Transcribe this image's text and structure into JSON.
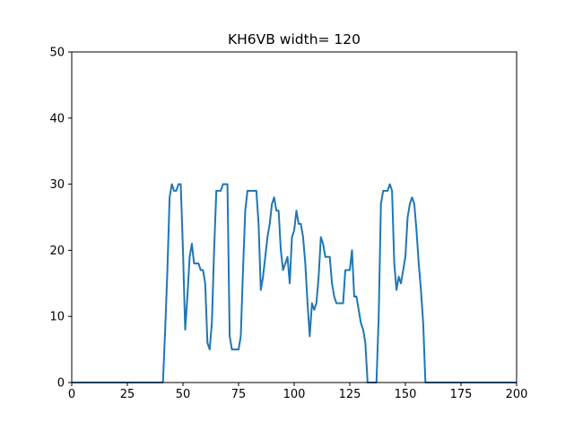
{
  "chart_data": {
    "type": "line",
    "title": "KH6VB width= 120",
    "xlabel": "",
    "ylabel": "",
    "xlim": [
      0,
      200
    ],
    "ylim": [
      0,
      50
    ],
    "grid": false,
    "line_color": "#1f77b4",
    "xticks": [
      0,
      25,
      50,
      75,
      100,
      125,
      150,
      175,
      200
    ],
    "yticks": [
      0,
      10,
      20,
      30,
      40,
      50
    ],
    "series": [
      {
        "x": [
          0,
          41,
          42,
          43,
          44,
          45,
          46,
          47,
          48,
          49,
          50,
          51,
          52,
          53,
          54,
          55,
          56,
          57,
          58,
          59,
          60,
          61,
          62,
          63,
          64,
          65,
          66,
          67,
          68,
          69,
          70,
          71,
          72,
          73,
          74,
          75,
          76,
          77,
          78,
          79,
          80,
          81,
          82,
          83,
          84,
          85,
          86,
          87,
          88,
          89,
          90,
          91,
          92,
          93,
          94,
          95,
          96,
          97,
          98,
          99,
          100,
          101,
          102,
          103,
          104,
          105,
          106,
          107,
          108,
          109,
          110,
          111,
          112,
          113,
          114,
          115,
          116,
          117,
          118,
          119,
          120,
          121,
          122,
          123,
          124,
          125,
          126,
          127,
          128,
          129,
          130,
          131,
          132,
          133,
          134,
          135,
          136,
          137,
          138,
          139,
          140,
          141,
          142,
          143,
          144,
          145,
          146,
          147,
          148,
          149,
          150,
          151,
          152,
          153,
          154,
          155,
          156,
          157,
          158,
          159,
          160,
          161,
          200
        ],
        "values": [
          0,
          0,
          8,
          17,
          28,
          30,
          29,
          29,
          30,
          30,
          20,
          8,
          13,
          19,
          21,
          18,
          18,
          18,
          17,
          17,
          15,
          6,
          5,
          9,
          20,
          29,
          29,
          29,
          30,
          30,
          30,
          7,
          5,
          5,
          5,
          5,
          7,
          17,
          26,
          29,
          29,
          29,
          29,
          29,
          24,
          14,
          16,
          19,
          22,
          24,
          27,
          28,
          26,
          26,
          20,
          17,
          18,
          19,
          15,
          22,
          23,
          26,
          24,
          24,
          22,
          18,
          12,
          7,
          12,
          11,
          12,
          16,
          22,
          21,
          19,
          19,
          19,
          15,
          13,
          12,
          12,
          12,
          12,
          17,
          17,
          17,
          20,
          13,
          13,
          11,
          9,
          8,
          6,
          0,
          0,
          0,
          0,
          0,
          10,
          27,
          29,
          29,
          29,
          30,
          29,
          18,
          14,
          16,
          15,
          17,
          19,
          25,
          27,
          28,
          27,
          23,
          18,
          14,
          9,
          0,
          0,
          0,
          0
        ]
      }
    ]
  }
}
